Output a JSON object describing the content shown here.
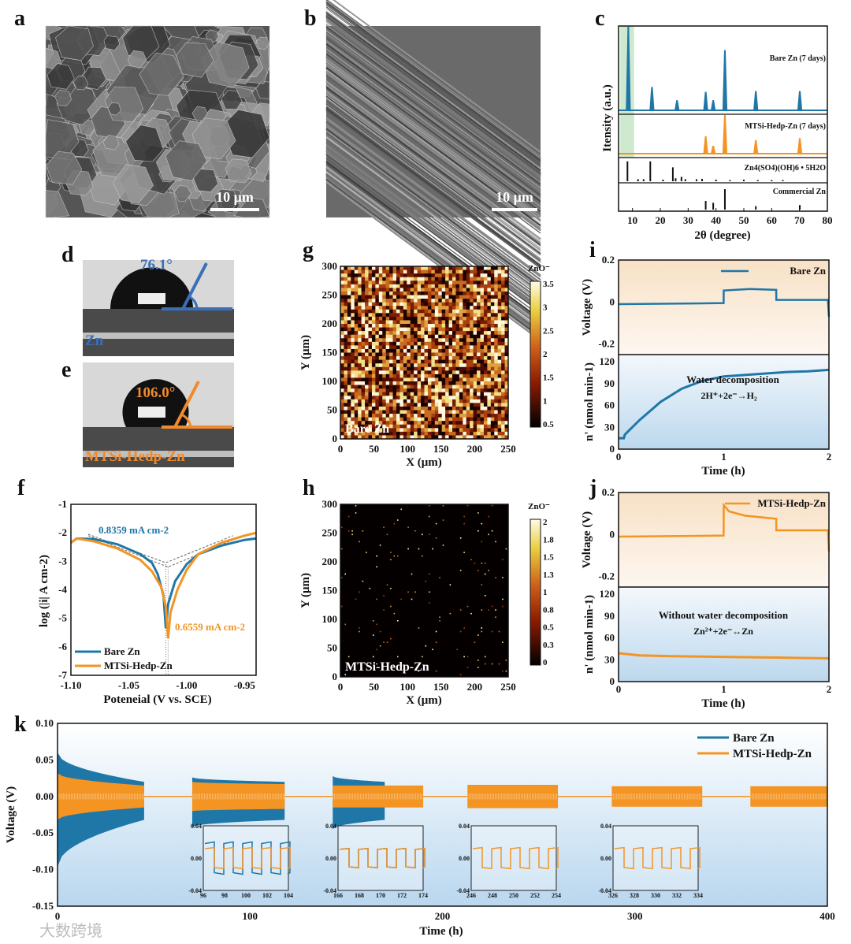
{
  "panel_labels": {
    "a": "a",
    "b": "b",
    "c": "c",
    "d": "d",
    "e": "e",
    "f": "f",
    "g": "g",
    "h": "h",
    "i": "i",
    "j": "j",
    "k": "k"
  },
  "sem": {
    "a_scale": "10 μm",
    "b_scale": "10 μm"
  },
  "contact_angle": {
    "d": {
      "angle": "76.1°",
      "sample": "Zn",
      "color": "#3a6fb7"
    },
    "e": {
      "angle": "106.0°",
      "sample": "MTSi-Hedp-Zn",
      "color": "#f08a2c"
    }
  },
  "colors": {
    "bare": "#1f77a8",
    "mtsi": "#f39423",
    "green_band": "#cfe9cf"
  },
  "watermark": "大数跨境",
  "chart_data": [
    {
      "id": "c",
      "type": "line",
      "title": "",
      "xlabel": "2θ (degree)",
      "ylabel": "Itensity (a.u.)",
      "xlim": [
        5,
        80
      ],
      "xticks": [
        "10",
        "20",
        "30",
        "40",
        "50",
        "60",
        "70",
        "80"
      ],
      "series": [
        {
          "name": "Bare Zn (7 days)",
          "peaks": [
            [
              8.5,
              100
            ],
            [
              17,
              28
            ],
            [
              26,
              12
            ],
            [
              36.3,
              22
            ],
            [
              39,
              12
            ],
            [
              43.2,
              72
            ],
            [
              54.3,
              23
            ],
            [
              70.1,
              23
            ]
          ]
        },
        {
          "name": "MTSi-Hedp-Zn (7 days)",
          "peaks": [
            [
              36.3,
              45
            ],
            [
              39,
              20
            ],
            [
              43.2,
              100
            ],
            [
              54.3,
              35
            ],
            [
              70.1,
              40
            ]
          ]
        },
        {
          "name": "Zn4(SO4)(OH)6 • 5H2O",
          "peaks": [
            [
              8.2,
              100
            ],
            [
              12,
              10
            ],
            [
              14,
              10
            ],
            [
              16.4,
              100
            ],
            [
              21,
              8
            ],
            [
              24.5,
              70
            ],
            [
              25.5,
              15
            ],
            [
              27.6,
              22
            ],
            [
              29,
              10
            ],
            [
              33,
              10
            ],
            [
              35,
              12
            ],
            [
              40,
              8
            ],
            [
              45,
              6
            ],
            [
              50,
              8
            ],
            [
              55,
              6
            ],
            [
              60,
              6
            ],
            [
              64,
              6
            ]
          ]
        },
        {
          "name": "Commercial Zn",
          "peaks": [
            [
              36.3,
              38
            ],
            [
              39,
              30
            ],
            [
              43.2,
              90
            ],
            [
              54.3,
              15
            ],
            [
              70.1,
              20
            ]
          ]
        }
      ]
    },
    {
      "id": "f",
      "type": "line",
      "xlabel": "Poteneial (V vs. SCE)",
      "ylabel": "log (|i| A cm-2)",
      "xlim": [
        -1.1,
        -0.94
      ],
      "ylim": [
        -7,
        -1
      ],
      "xticks": [
        "-1.10",
        "-1.05",
        "-1.00",
        "-0.95"
      ],
      "yticks": [
        "-1",
        "-2",
        "-3",
        "-4",
        "-5",
        "-6",
        "-7"
      ],
      "annotations": [
        "0.8359 mA cm-2",
        "0.6559 mA cm-2"
      ],
      "series": [
        {
          "name": "Bare Zn",
          "x": [
            -1.1,
            -1.095,
            -1.08,
            -1.06,
            -1.04,
            -1.03,
            -1.025,
            -1.02,
            -1.018,
            -1.016,
            -1.01,
            -1.0,
            -0.99,
            -0.97,
            -0.95,
            -0.94
          ],
          "y": [
            -2.35,
            -2.2,
            -2.22,
            -2.4,
            -2.75,
            -3.05,
            -3.45,
            -4.2,
            -5.35,
            -4.5,
            -3.7,
            -3.1,
            -2.75,
            -2.45,
            -2.25,
            -2.2
          ]
        },
        {
          "name": "MTSi-Hedp-Zn",
          "x": [
            -1.1,
            -1.095,
            -1.08,
            -1.06,
            -1.04,
            -1.03,
            -1.022,
            -1.018,
            -1.016,
            -1.014,
            -1.008,
            -1.0,
            -0.99,
            -0.97,
            -0.95,
            -0.94
          ],
          "y": [
            -2.35,
            -2.2,
            -2.3,
            -2.55,
            -2.95,
            -3.35,
            -3.9,
            -4.6,
            -5.7,
            -4.8,
            -4.0,
            -3.3,
            -2.75,
            -2.35,
            -2.1,
            -2.0
          ]
        }
      ]
    },
    {
      "id": "g",
      "type": "heatmap",
      "label": "Bare Zn",
      "xlabel": "X (μm)",
      "ylabel": "Y (μm)",
      "colorbar_title": "ZnO⁻",
      "xlim": [
        0,
        250
      ],
      "ylim": [
        0,
        300
      ],
      "clim": [
        0.5,
        3.7
      ],
      "xticks": [
        "0",
        "50",
        "100",
        "150",
        "200",
        "250"
      ],
      "yticks": [
        "0",
        "50",
        "100",
        "150",
        "200",
        "250",
        "300"
      ],
      "cticks": [
        "3.5",
        "3",
        "2.5",
        "2",
        "1.5",
        "1",
        "0.5"
      ],
      "density": "dense"
    },
    {
      "id": "h",
      "type": "heatmap",
      "label": "MTSi-Hedp-Zn",
      "xlabel": "X (μm)",
      "ylabel": "Y (μm)",
      "colorbar_title": "ZnO⁻",
      "xlim": [
        0,
        250
      ],
      "ylim": [
        0,
        300
      ],
      "clim": [
        0,
        2
      ],
      "xticks": [
        "0",
        "50",
        "100",
        "150",
        "200",
        "250"
      ],
      "yticks": [
        "0",
        "50",
        "100",
        "150",
        "200",
        "250",
        "300"
      ],
      "cticks": [
        "2",
        "1.8",
        "1.5",
        "1.3",
        "1",
        "0.8",
        "0.5",
        "0.3",
        "0"
      ],
      "density": "sparse"
    },
    {
      "id": "i",
      "type": "line",
      "xlabel": "Time (h)",
      "xlim": [
        0,
        2
      ],
      "xticks": [
        "0",
        "1",
        "2"
      ],
      "top": {
        "ylabel": "Voltage (V)",
        "ylim": [
          -0.25,
          0.2
        ],
        "yticks": [
          "0.2",
          "0",
          "-0.2"
        ],
        "legend": "Bare Zn",
        "x": [
          0,
          0.999,
          1.0,
          1.25,
          1.499,
          1.5,
          1.99,
          2.0
        ],
        "y": [
          -0.01,
          -0.005,
          0.055,
          0.062,
          0.058,
          0.01,
          0.01,
          -0.07
        ]
      },
      "bottom": {
        "ylabel": "n' (nmol min-1)",
        "ylim": [
          0,
          130
        ],
        "yticks": [
          "120",
          "90",
          "60",
          "30",
          "0"
        ],
        "annotation": "Water decomposition",
        "reaction": "2H⁺+2e⁻→H₂",
        "x": [
          0,
          0.05,
          0.06,
          0.2,
          0.4,
          0.6,
          0.8,
          1.0,
          1.2,
          1.4,
          1.6,
          1.8,
          2.0
        ],
        "y": [
          15,
          15,
          20,
          40,
          65,
          83,
          94,
          100,
          102,
          104,
          106,
          107,
          109
        ]
      }
    },
    {
      "id": "j",
      "type": "line",
      "xlabel": "Time (h)",
      "xlim": [
        0,
        2
      ],
      "xticks": [
        "0",
        "1",
        "2"
      ],
      "top": {
        "ylabel": "Voltage (V)",
        "ylim": [
          -0.25,
          0.2
        ],
        "yticks": [
          "0.2",
          "0",
          "-0.2"
        ],
        "legend": "MTSi-Hedp-Zn",
        "x": [
          0,
          0.999,
          1.0,
          1.05,
          1.2,
          1.499,
          1.5,
          1.99,
          2.0
        ],
        "y": [
          -0.01,
          -0.005,
          0.14,
          0.11,
          0.09,
          0.075,
          0.02,
          0.02,
          -0.08
        ]
      },
      "bottom": {
        "ylabel": "n' (nmol min-1)",
        "ylim": [
          0,
          130
        ],
        "yticks": [
          "120",
          "90",
          "60",
          "30",
          "0"
        ],
        "annotation": "Without water decomposition",
        "reaction": "Zn²⁺+2e⁻↔Zn",
        "x": [
          0,
          0.2,
          0.5,
          1.0,
          1.5,
          2.0
        ],
        "y": [
          39,
          36,
          35,
          34,
          33,
          32
        ]
      }
    },
    {
      "id": "k",
      "type": "line",
      "xlabel": "Time (h)",
      "ylabel": "Voltage (V)",
      "xlim": [
        0,
        400
      ],
      "ylim": [
        -0.15,
        0.1
      ],
      "xticks": [
        "0",
        "100",
        "200",
        "300",
        "400"
      ],
      "yticks": [
        "0.10",
        "0.05",
        "0.00",
        "-0.05",
        "-0.10",
        "-0.15"
      ],
      "legend": [
        "Bare Zn",
        "MTSi-Hedp-Zn"
      ],
      "series": [
        {
          "name": "Bare Zn",
          "segments": [
            [
              0,
              45,
              0.06,
              0.02
            ],
            [
              70,
              118,
              0.026,
              0.02
            ],
            [
              143,
              170,
              0.028,
              0.02
            ]
          ]
        },
        {
          "name": "MTSi-Hedp-Zn",
          "segments": [
            [
              0,
              45,
              0.032,
              0.015
            ],
            [
              70,
              118,
              0.02,
              0.017
            ],
            [
              143,
              190,
              0.015,
              0.015
            ],
            [
              213,
              260,
              0.016,
              0.016
            ],
            [
              288,
              335,
              0.014,
              0.014
            ],
            [
              360,
              400,
              0.014,
              0.014
            ]
          ]
        }
      ],
      "insets": [
        {
          "xticks": [
            "96",
            "98",
            "100",
            "102",
            "104"
          ],
          "yticks": [
            "0.04",
            "0.00",
            "-0.04"
          ],
          "bare_amp": 0.02,
          "mtsi_amp": 0.013
        },
        {
          "xticks": [
            "166",
            "168",
            "170",
            "172",
            "174"
          ],
          "yticks": [
            "0.04",
            "0.00",
            "-0.04"
          ],
          "bare_amp": 0.012,
          "mtsi_amp": 0.012
        },
        {
          "xticks": [
            "246",
            "248",
            "250",
            "252",
            "254"
          ],
          "yticks": [
            "0.04",
            "0.00",
            "-0.04"
          ],
          "bare_amp": 0,
          "mtsi_amp": 0.013
        },
        {
          "xticks": [
            "326",
            "328",
            "330",
            "332",
            "334"
          ],
          "yticks": [
            "0.04",
            "0.00",
            "-0.04"
          ],
          "bare_amp": 0,
          "mtsi_amp": 0.013
        }
      ]
    }
  ]
}
